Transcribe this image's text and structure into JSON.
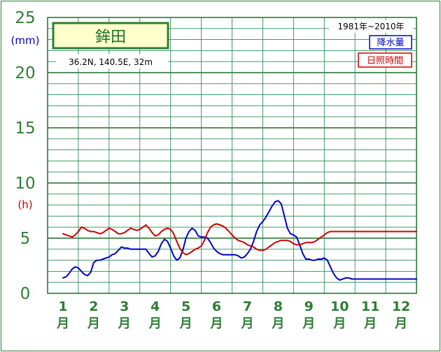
{
  "chart_data": {
    "type": "line",
    "station": "鉾田",
    "location": "36.2N,  140.5E,  32m",
    "period": "1981年~2010年",
    "legend": [
      {
        "label": "降水量",
        "color": "#0000cc"
      },
      {
        "label": "日照時間",
        "color": "#cc0000"
      }
    ],
    "y_unit_precip": "(mm)",
    "y_unit_sun": "(h)",
    "y_ticks": [
      {
        "value": 0,
        "label": "0"
      },
      {
        "value": 5,
        "label": "5"
      },
      {
        "value": 10,
        "label": "10"
      },
      {
        "value": 15,
        "label": "15"
      },
      {
        "value": 20,
        "label": "20"
      },
      {
        "value": 25,
        "label": "25"
      }
    ],
    "ylim": [
      0,
      25
    ],
    "months": [
      {
        "num": "1",
        "unit": "月"
      },
      {
        "num": "2",
        "unit": "月"
      },
      {
        "num": "3",
        "unit": "月"
      },
      {
        "num": "4",
        "unit": "月"
      },
      {
        "num": "5",
        "unit": "月"
      },
      {
        "num": "6",
        "unit": "月"
      },
      {
        "num": "7",
        "unit": "月"
      },
      {
        "num": "8",
        "unit": "月"
      },
      {
        "num": "9",
        "unit": "月"
      },
      {
        "num": "10",
        "unit": "月"
      },
      {
        "num": "11",
        "unit": "月"
      },
      {
        "num": "12",
        "unit": "月"
      }
    ],
    "series": [
      {
        "key": "precipitation",
        "color": "#0000cc",
        "x": [
          1,
          1.1,
          1.2,
          1.3,
          1.4,
          1.5,
          1.6,
          1.7,
          1.8,
          1.9,
          2,
          2.1,
          2.2,
          2.3,
          2.4,
          2.5,
          2.6,
          2.7,
          2.8,
          2.9,
          3,
          3.1,
          3.2,
          3.3,
          3.4,
          3.5,
          3.6,
          3.7,
          3.8,
          3.9,
          4,
          4.1,
          4.2,
          4.3,
          4.4,
          4.5,
          4.6,
          4.7,
          4.8,
          4.9,
          5,
          5.1,
          5.2,
          5.3,
          5.4,
          5.5,
          5.6,
          5.7,
          5.8,
          5.9,
          6,
          6.1,
          6.2,
          6.3,
          6.4,
          6.5,
          6.6,
          6.7,
          6.8,
          6.9,
          7,
          7.1,
          7.2,
          7.3,
          7.4,
          7.5,
          7.6,
          7.7,
          7.8,
          7.9,
          8,
          8.1,
          8.2,
          8.3,
          8.4,
          8.5,
          8.6,
          8.7,
          8.8,
          8.9,
          9,
          9.1,
          9.2,
          9.3,
          9.4,
          9.5,
          9.6,
          9.7,
          9.8,
          9.9,
          10,
          10.1,
          10.2,
          10.3,
          10.4,
          10.5,
          10.6,
          10.7,
          10.8,
          10.9,
          11,
          11.1,
          11.2,
          11.3,
          11.4,
          11.5,
          11.6,
          11.7,
          11.8,
          11.9,
          12,
          12.1,
          12.2,
          12.3,
          12.4,
          12.5
        ],
        "values": [
          1.4,
          1.5,
          1.8,
          2.2,
          2.4,
          2.3,
          2.0,
          1.7,
          1.6,
          1.9,
          2.8,
          3.0,
          3.0,
          3.1,
          3.2,
          3.3,
          3.5,
          3.6,
          3.9,
          4.2,
          4.1,
          4.1,
          4.0,
          4.0,
          4.0,
          4.0,
          4.0,
          4.0,
          3.6,
          3.3,
          3.4,
          3.8,
          4.5,
          4.9,
          4.7,
          4.1,
          3.4,
          3.0,
          3.2,
          3.9,
          5.0,
          5.6,
          5.9,
          5.7,
          5.2,
          5.1,
          5.1,
          5.0,
          4.6,
          4.1,
          3.8,
          3.6,
          3.5,
          3.5,
          3.5,
          3.5,
          3.5,
          3.4,
          3.2,
          3.3,
          3.6,
          4.0,
          4.7,
          5.6,
          6.2,
          6.5,
          6.9,
          7.4,
          7.9,
          8.3,
          8.4,
          8.1,
          7.0,
          5.9,
          5.4,
          5.3,
          5.1,
          4.4,
          3.6,
          3.1,
          3.1,
          3.0,
          3.0,
          3.1,
          3.1,
          3.2,
          3.0,
          2.4,
          1.8,
          1.4,
          1.2,
          1.3,
          1.4,
          1.4,
          1.3,
          1.3,
          1.3,
          1.3,
          1.3,
          1.3,
          1.3,
          1.3,
          1.3,
          1.3,
          1.3,
          1.3,
          1.3,
          1.3,
          1.3,
          1.3,
          1.3,
          1.3,
          1.3,
          1.3,
          1.3,
          1.3
        ]
      },
      {
        "key": "sunshine",
        "color": "#cc0000",
        "x": [
          1,
          1.1,
          1.2,
          1.3,
          1.4,
          1.5,
          1.6,
          1.7,
          1.8,
          1.9,
          2,
          2.1,
          2.2,
          2.3,
          2.4,
          2.5,
          2.6,
          2.7,
          2.8,
          2.9,
          3,
          3.1,
          3.2,
          3.3,
          3.4,
          3.5,
          3.6,
          3.7,
          3.8,
          3.9,
          4,
          4.1,
          4.2,
          4.3,
          4.4,
          4.5,
          4.6,
          4.7,
          4.8,
          4.9,
          5,
          5.1,
          5.2,
          5.3,
          5.4,
          5.5,
          5.6,
          5.7,
          5.8,
          5.9,
          6,
          6.1,
          6.2,
          6.3,
          6.4,
          6.5,
          6.6,
          6.7,
          6.8,
          6.9,
          7,
          7.1,
          7.2,
          7.3,
          7.4,
          7.5,
          7.6,
          7.7,
          7.8,
          7.9,
          8,
          8.1,
          8.2,
          8.3,
          8.4,
          8.5,
          8.6,
          8.7,
          8.8,
          8.9,
          9,
          9.1,
          9.2,
          9.3,
          9.4,
          9.5,
          9.6,
          9.7,
          9.8,
          9.9,
          10,
          10.1,
          10.2,
          10.3,
          10.4,
          10.5,
          10.6,
          10.7,
          10.8,
          10.9,
          11,
          11.1,
          11.2,
          11.3,
          11.4,
          11.5,
          11.6,
          11.7,
          11.8,
          11.9,
          12,
          12.1,
          12.2,
          12.3,
          12.4,
          12.5
        ],
        "values": [
          5.4,
          5.3,
          5.2,
          5.1,
          5.3,
          5.6,
          6.0,
          5.9,
          5.7,
          5.6,
          5.6,
          5.5,
          5.4,
          5.5,
          5.7,
          5.9,
          5.8,
          5.6,
          5.4,
          5.4,
          5.5,
          5.7,
          5.9,
          5.8,
          5.7,
          5.8,
          6.0,
          6.2,
          5.9,
          5.5,
          5.2,
          5.3,
          5.6,
          5.8,
          5.9,
          5.8,
          5.4,
          4.7,
          4.1,
          3.7,
          3.5,
          3.6,
          3.8,
          4.0,
          4.1,
          4.3,
          4.8,
          5.5,
          6.0,
          6.2,
          6.3,
          6.2,
          6.1,
          5.9,
          5.6,
          5.3,
          5.0,
          4.8,
          4.7,
          4.6,
          4.4,
          4.3,
          4.2,
          4.0,
          3.9,
          3.9,
          4.0,
          4.2,
          4.4,
          4.6,
          4.7,
          4.8,
          4.8,
          4.8,
          4.7,
          4.5,
          4.4,
          4.4,
          4.5,
          4.6,
          4.6,
          4.6,
          4.7,
          4.9,
          5.1,
          5.3,
          5.5,
          5.6,
          5.6,
          5.6,
          5.6,
          5.6,
          5.6,
          5.6,
          5.6,
          5.6,
          5.6,
          5.6,
          5.6,
          5.6,
          5.6,
          5.6,
          5.6,
          5.6,
          5.6,
          5.6,
          5.6,
          5.6,
          5.6,
          5.6,
          5.6,
          5.6,
          5.6,
          5.6,
          5.6,
          5.6
        ]
      }
    ]
  }
}
